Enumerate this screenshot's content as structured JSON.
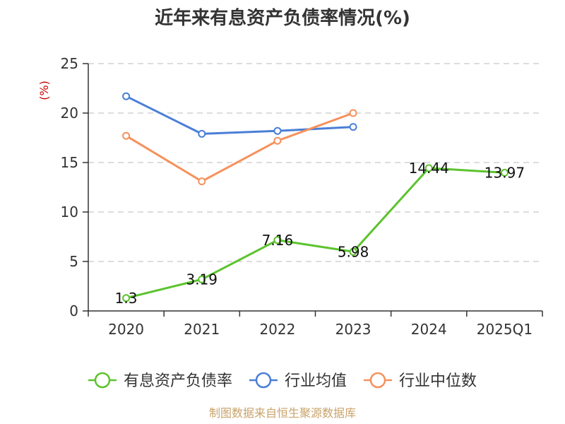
{
  "title": "近年来有息资产负债率情况(%)",
  "footer": "制图数据来自恒生聚源数据库",
  "chart_data": {
    "type": "line",
    "title": "近年来有息资产负债率情况(%)",
    "ylabel": "(%)",
    "xlabel": "",
    "categories": [
      "2020",
      "2021",
      "2022",
      "2023",
      "2024",
      "2025Q1"
    ],
    "ylim": [
      0,
      25
    ],
    "yticks": [
      0,
      5,
      10,
      15,
      20,
      25
    ],
    "grid": true,
    "legend_position": "bottom",
    "series": [
      {
        "name": "有息资产负债率",
        "color": "#5cc32e",
        "values": [
          1.3,
          3.19,
          7.16,
          5.98,
          14.44,
          13.97
        ],
        "labels": [
          "1.3",
          "3.19",
          "7.16",
          "5.98",
          "14.44",
          "13.97"
        ]
      },
      {
        "name": "行业均值",
        "color": "#4a7fd6",
        "values": [
          21.7,
          17.9,
          18.2,
          18.6,
          null,
          null
        ]
      },
      {
        "name": "行业中位数",
        "color": "#f6915c",
        "values": [
          17.7,
          13.1,
          17.2,
          20.0,
          null,
          null
        ]
      }
    ]
  }
}
